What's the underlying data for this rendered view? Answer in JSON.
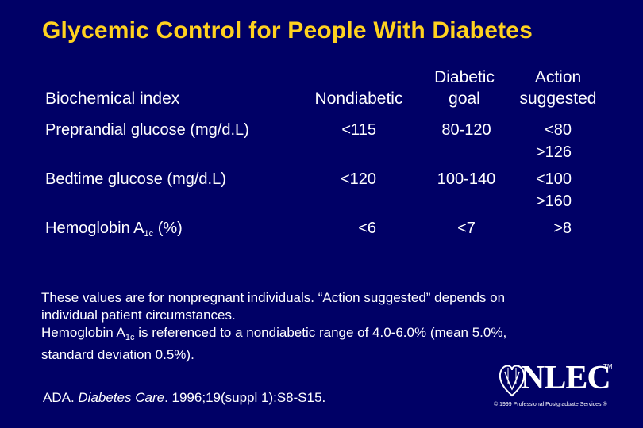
{
  "slide": {
    "title": "Glycemic Control for People With Diabetes"
  },
  "table": {
    "headers": {
      "index": "Biochemical index",
      "nondiabetic": "Nondiabetic",
      "goal_line1": "Diabetic",
      "goal_line2": "goal",
      "action_line1": "Action",
      "action_line2": "suggested"
    },
    "rows": [
      {
        "index": "Preprandial glucose (mg/d.L)",
        "nondiabetic": "<115",
        "goal": "80-120",
        "action1": "<80",
        "action2": ">126"
      },
      {
        "index": "Bedtime glucose (mg/d.L)",
        "nondiabetic": "<120",
        "goal": "100-140",
        "action1": "<100",
        "action2": ">160"
      },
      {
        "index_prefix": "Hemoglobin A",
        "index_sub": "1c",
        "index_suffix": " (%)",
        "nondiabetic": "<6",
        "goal": "<7",
        "action1": ">8"
      }
    ]
  },
  "notes": {
    "line1": "These values are for nonpregnant individuals. “Action suggested” depends on",
    "line2": "individual patient circumstances.",
    "line3_prefix": "Hemoglobin A",
    "line3_sub": "1c",
    "line3_suffix": " is referenced to a nondiabetic range of 4.0-6.0% (mean 5.0%,",
    "line4": "standard deviation 0.5%)."
  },
  "reference": {
    "authors": "ADA. ",
    "journal": "Diabetes Care",
    "citation": ". 1996;19(suppl 1):S8-S15."
  },
  "logo": {
    "text": "NLEC",
    "tm": "TM",
    "copyright": "© 1999 Professional Postgraduate Services ®"
  },
  "colors": {
    "background": "#000066",
    "title": "#ffd21f",
    "text": "#ffffff"
  }
}
